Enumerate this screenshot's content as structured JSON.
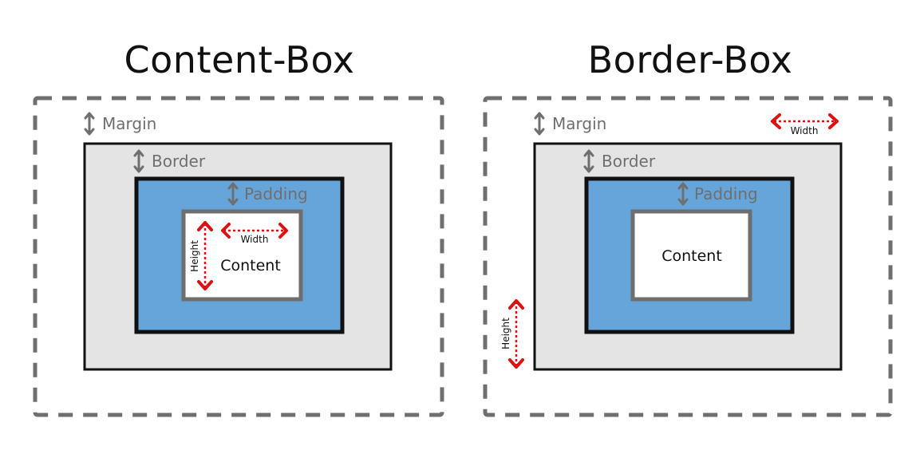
{
  "colors": {
    "margin_outline": "#6f6f6f",
    "border_area": "#e4e4e4",
    "padding_area": "#66a5da",
    "content_area": "#ffffff",
    "content_outline": "#6e6e6e",
    "dimension_arrow": "#dd1111",
    "stroke": "#111111"
  },
  "left_panel": {
    "title": "Content-Box",
    "margin_label": "Margin",
    "border_label": "Border",
    "padding_label": "Padding",
    "content_label": "Content",
    "width_label": "Width",
    "height_label": "Height"
  },
  "right_panel": {
    "title": "Border-Box",
    "margin_label": "Margin",
    "border_label": "Border",
    "padding_label": "Padding",
    "content_label": "Content",
    "width_label": "Width",
    "height_label": "Height"
  },
  "icons": {
    "vertical_arrow": "double-vertical-arrow-icon",
    "horizontal_dimension": "red-horizontal-dimension-icon",
    "vertical_dimension": "red-vertical-dimension-icon"
  }
}
